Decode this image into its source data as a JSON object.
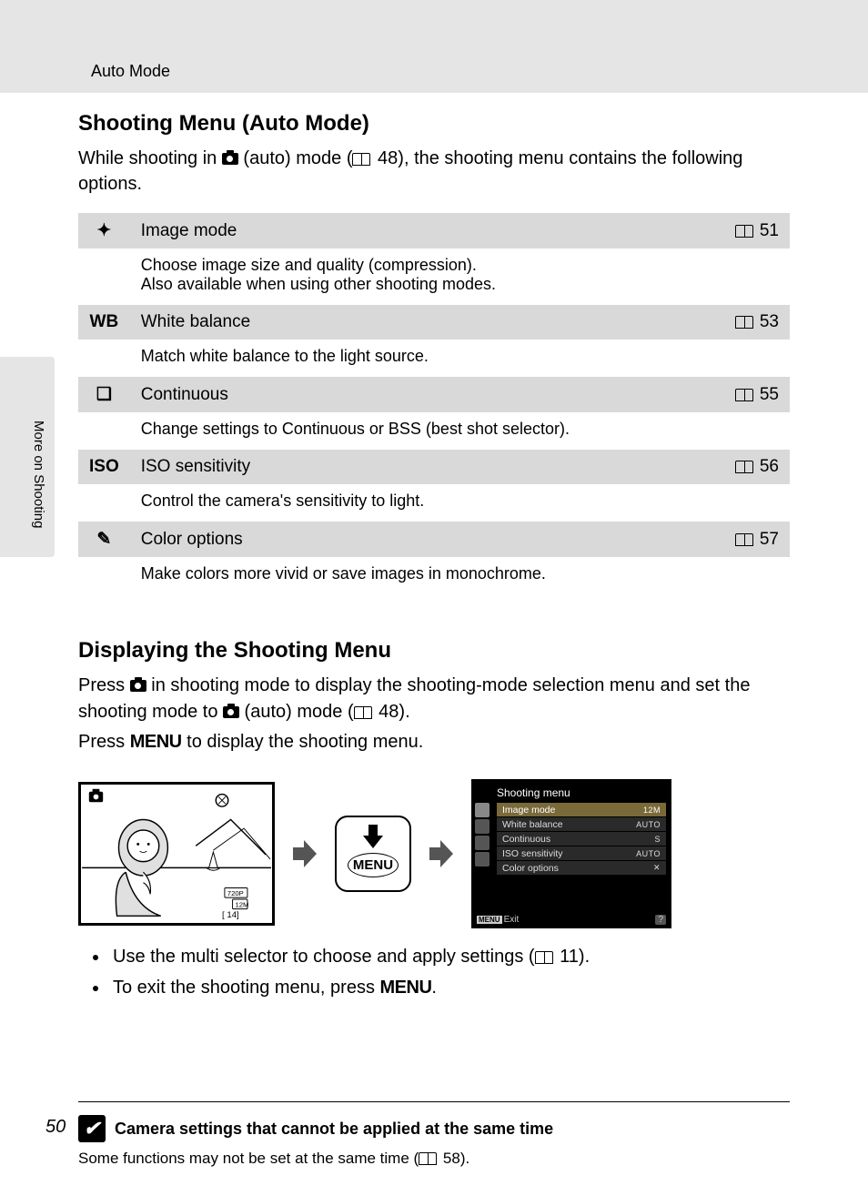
{
  "header": {
    "section": "Auto Mode"
  },
  "side_tab": "More on Shooting",
  "page_number": "50",
  "s1": {
    "title": "Shooting Menu (Auto Mode)",
    "intro_pre": "While shooting in ",
    "intro_mid": " (auto) mode (",
    "intro_ref": " 48",
    "intro_post": "), the shooting menu contains the following options.",
    "rows": [
      {
        "icon": "✦",
        "title": "Image mode",
        "page": "51",
        "desc": "Choose image size and quality (compression).\nAlso available when using other shooting modes."
      },
      {
        "icon": "WB",
        "title": "White balance",
        "page": "53",
        "desc": "Match white balance to the light source."
      },
      {
        "icon": "❏",
        "title": "Continuous",
        "page": "55",
        "desc": "Change settings to Continuous or BSS (best shot selector)."
      },
      {
        "icon": "ISO",
        "title": "ISO sensitivity",
        "page": "56",
        "desc": "Control the camera's sensitivity to light."
      },
      {
        "icon": "✎",
        "title": "Color options",
        "page": "57",
        "desc": "Make colors more vivid or save images in monochrome."
      }
    ]
  },
  "s2": {
    "title": "Displaying the Shooting Menu",
    "p1a": "Press ",
    "p1b": " in shooting mode to display the shooting-mode selection menu and set the shooting mode to ",
    "p1c": " (auto) mode (",
    "p1_ref": " 48",
    "p1d": ").",
    "p2a": "Press ",
    "p2_menu": "MENU",
    "p2b": " to display the shooting menu.",
    "menu_btn_label": "MENU",
    "lcd": {
      "title": "Shooting menu",
      "items": [
        {
          "label": "Image mode",
          "value": "12M",
          "selected": true
        },
        {
          "label": "White balance",
          "value": "AUTO",
          "selected": false
        },
        {
          "label": "Continuous",
          "value": "S",
          "selected": false
        },
        {
          "label": "ISO sensitivity",
          "value": "AUTO",
          "selected": false
        },
        {
          "label": "Color options",
          "value": "✕",
          "selected": false
        }
      ],
      "exit": "Exit",
      "menu_tag": "MENU",
      "help": "?"
    },
    "bullets": {
      "b1a": "Use the multi selector to choose and apply settings (",
      "b1_ref": " 11",
      "b1b": ").",
      "b2a": "To exit the shooting menu, press ",
      "b2_menu": "MENU",
      "b2b": "."
    }
  },
  "note": {
    "title": "Camera settings that cannot be applied at the same time",
    "body_a": "Some functions may not be set at the same time (",
    "body_ref": " 58",
    "body_b": ")."
  },
  "colors": {
    "header_bg": "#e5e5e5",
    "row_bg": "#d9d9d9",
    "lcd_bg": "#000000",
    "lcd_row_bg": "#2a2a2a",
    "lcd_sel_bg": "#7a6a3a"
  }
}
